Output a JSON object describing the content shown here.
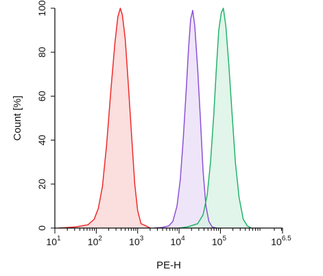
{
  "chart_data": {
    "type": "area",
    "xlabel": "PE-H",
    "ylabel": "Count  [%]",
    "x_scale": "log10",
    "xlim": [
      1,
      6.5
    ],
    "ylim": [
      0,
      100
    ],
    "x_ticks": [
      {
        "base": "10",
        "exp": "1",
        "pos": 1
      },
      {
        "base": "10",
        "exp": "2",
        "pos": 2
      },
      {
        "base": "10",
        "exp": "3",
        "pos": 3
      },
      {
        "base": "10",
        "exp": "4",
        "pos": 4
      },
      {
        "base": "10",
        "exp": "5",
        "pos": 5
      },
      {
        "base": "10",
        "exp": "6.5",
        "pos": 6.5
      }
    ],
    "y_ticks": [
      0,
      20,
      40,
      60,
      80,
      100
    ],
    "series": [
      {
        "color": "#ee2a2a",
        "fill": "#f9d3d3",
        "points": [
          [
            1.1,
            0
          ],
          [
            1.5,
            0.5
          ],
          [
            1.8,
            1.5
          ],
          [
            1.95,
            4
          ],
          [
            2.05,
            9
          ],
          [
            2.15,
            19
          ],
          [
            2.25,
            38
          ],
          [
            2.35,
            62
          ],
          [
            2.45,
            84
          ],
          [
            2.52,
            96
          ],
          [
            2.58,
            100
          ],
          [
            2.63,
            97
          ],
          [
            2.7,
            86
          ],
          [
            2.78,
            64
          ],
          [
            2.86,
            40
          ],
          [
            2.93,
            20
          ],
          [
            3.0,
            8
          ],
          [
            3.08,
            2
          ],
          [
            3.2,
            1
          ],
          [
            3.3,
            0
          ]
        ]
      },
      {
        "color": "#8d4fd6",
        "fill": "#e9dcf7",
        "points": [
          [
            3.4,
            0
          ],
          [
            3.6,
            0.3
          ],
          [
            3.75,
            1
          ],
          [
            3.85,
            3
          ],
          [
            3.95,
            10
          ],
          [
            4.03,
            22
          ],
          [
            4.1,
            40
          ],
          [
            4.17,
            62
          ],
          [
            4.23,
            82
          ],
          [
            4.28,
            95
          ],
          [
            4.33,
            99
          ],
          [
            4.38,
            92
          ],
          [
            4.45,
            72
          ],
          [
            4.52,
            48
          ],
          [
            4.58,
            26
          ],
          [
            4.65,
            10
          ],
          [
            4.72,
            3
          ],
          [
            4.8,
            0.5
          ],
          [
            4.9,
            0
          ]
        ]
      },
      {
        "color": "#22b36a",
        "fill": "#d7f2e3",
        "points": [
          [
            4.0,
            0
          ],
          [
            4.2,
            0.5
          ],
          [
            4.45,
            2
          ],
          [
            4.58,
            6
          ],
          [
            4.68,
            15
          ],
          [
            4.76,
            30
          ],
          [
            4.84,
            52
          ],
          [
            4.9,
            72
          ],
          [
            4.96,
            90
          ],
          [
            5.02,
            98
          ],
          [
            5.07,
            100
          ],
          [
            5.13,
            92
          ],
          [
            5.2,
            75
          ],
          [
            5.28,
            52
          ],
          [
            5.36,
            30
          ],
          [
            5.45,
            14
          ],
          [
            5.55,
            4
          ],
          [
            5.65,
            1
          ],
          [
            5.75,
            0
          ]
        ]
      }
    ]
  }
}
